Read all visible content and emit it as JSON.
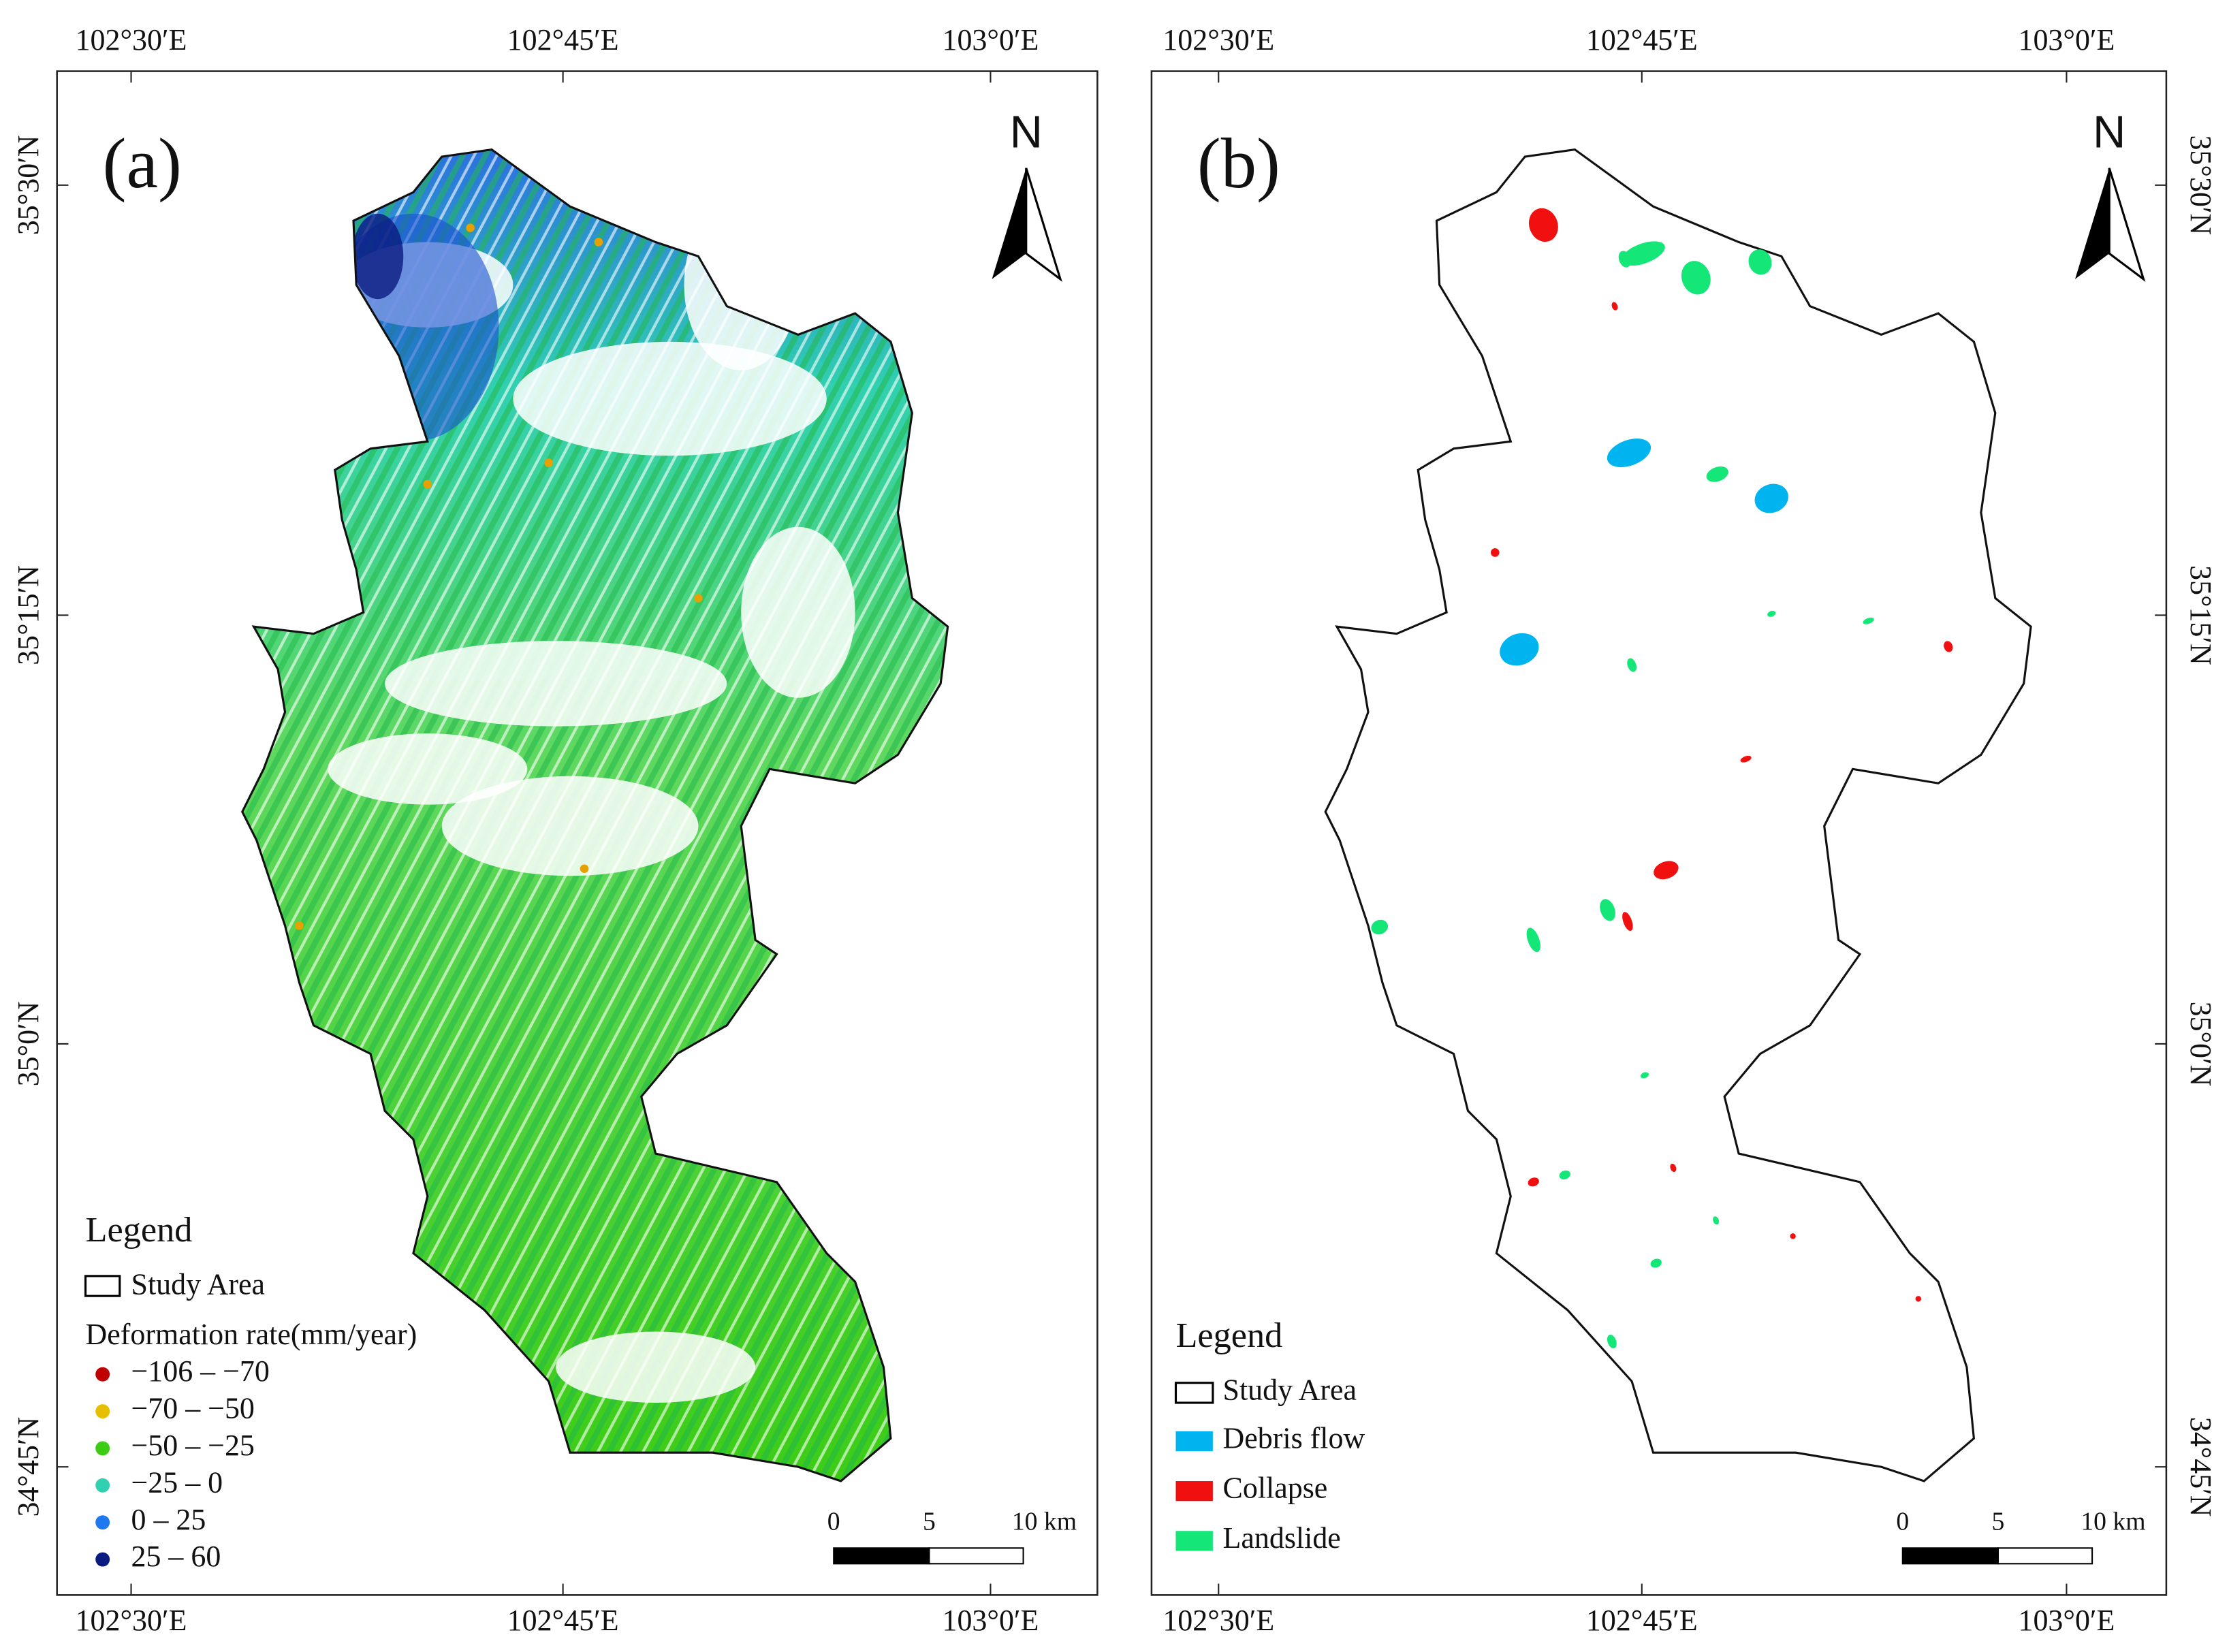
{
  "panels": [
    {
      "label": "(a)",
      "lon_labels": [
        "102°30′E",
        "102°45′E",
        "103°0′E"
      ],
      "lat_labels": [
        "35°30′N",
        "35°15′N",
        "35°0′N",
        "34°45′N"
      ],
      "north": "N",
      "legend": {
        "title": "Legend",
        "study_area": "Study Area",
        "subtitle": "Deformation rate(mm/year)",
        "items": [
          {
            "label": "−106 – −70",
            "color": "#c00000"
          },
          {
            "label": "−70 – −50",
            "color": "#e6c000"
          },
          {
            "label": "−50 – −25",
            "color": "#3ccc14"
          },
          {
            "label": "−25 – 0",
            "color": "#30d0b0"
          },
          {
            "label": "0 – 25",
            "color": "#1e78f0"
          },
          {
            "label": "25 – 60",
            "color": "#0a1a80"
          }
        ]
      },
      "scale_labels": [
        "0",
        "5",
        "10 km"
      ]
    },
    {
      "label": "(b)",
      "lon_labels": [
        "102°30′E",
        "102°45′E",
        "103°0′E"
      ],
      "lat_labels": [
        "35°30′N",
        "35°15′N",
        "35°0′N",
        "34°45′N"
      ],
      "north": "N",
      "legend": {
        "title": "Legend",
        "study_area": "Study Area",
        "items": [
          {
            "label": "Debris flow",
            "color": "#00b4f0"
          },
          {
            "label": "Collapse",
            "color": "#f01010"
          },
          {
            "label": "Landslide",
            "color": "#14e678"
          }
        ]
      },
      "scale_labels": [
        "0",
        "5",
        "10 km"
      ]
    }
  ]
}
